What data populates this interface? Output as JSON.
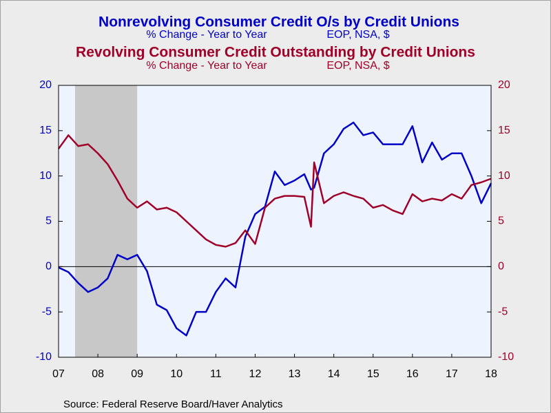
{
  "chart_data": {
    "type": "line",
    "source": "Source:  Federal Reserve Board/Haver Analytics",
    "recession": [
      2007.92,
      2009.5
    ],
    "recession_color": "#c8c8c8",
    "xlim": [
      2007.5,
      2018.5
    ],
    "xticks": [
      {
        "value": 2007.5,
        "label": "07"
      },
      {
        "value": 2008.5,
        "label": "08"
      },
      {
        "value": 2009.5,
        "label": "09"
      },
      {
        "value": 2010.5,
        "label": "10"
      },
      {
        "value": 2011.5,
        "label": "11"
      },
      {
        "value": 2012.5,
        "label": "12"
      },
      {
        "value": 2013.5,
        "label": "13"
      },
      {
        "value": 2014.5,
        "label": "14"
      },
      {
        "value": 2015.5,
        "label": "15"
      },
      {
        "value": 2016.5,
        "label": "16"
      },
      {
        "value": 2017.5,
        "label": "17"
      },
      {
        "value": 2018.5,
        "label": "18"
      }
    ],
    "ylim": [
      -10,
      20
    ],
    "yticks": [
      -10,
      -5,
      0,
      5,
      10,
      15,
      20
    ],
    "y2lim": [
      -10,
      20
    ],
    "y2ticks": [
      -10,
      -5,
      0,
      5,
      10,
      15,
      20
    ],
    "x": [
      2007.5,
      2007.75,
      2008,
      2008.25,
      2008.5,
      2008.75,
      2009,
      2009.25,
      2009.5,
      2009.75,
      2010,
      2010.25,
      2010.5,
      2010.75,
      2011,
      2011.25,
      2011.5,
      2011.75,
      2012,
      2012.25,
      2012.5,
      2012.75,
      2013,
      2013.25,
      2013.5,
      2013.75,
      2013.92,
      2014,
      2014.25,
      2014.5,
      2014.75,
      2015,
      2015.25,
      2015.5,
      2015.75,
      2016,
      2016.25,
      2016.5,
      2016.75,
      2017,
      2017.25,
      2017.5,
      2017.75,
      2018,
      2018.25,
      2018.5
    ],
    "series": [
      {
        "name": "Nonrevolving Consumer Credit O/s by Credit Unions",
        "unit": "% Change - Year to Year",
        "basis": "EOP, NSA, $",
        "color": "#0000c8",
        "axis": "y",
        "values": [
          -0.1,
          -0.6,
          -1.8,
          -2.8,
          -2.3,
          -1.3,
          1.3,
          0.8,
          1.3,
          -0.5,
          -4.2,
          -4.8,
          -6.8,
          -7.6,
          -5.0,
          -5.0,
          -2.8,
          -1.3,
          -2.3,
          3.3,
          5.8,
          6.6,
          10.5,
          9.0,
          9.5,
          10.2,
          8.5,
          8.7,
          12.5,
          13.5,
          15.2,
          15.9,
          14.5,
          14.8,
          13.5,
          13.5,
          13.5,
          15.5,
          11.5,
          13.7,
          11.8,
          12.5,
          12.5,
          10.0,
          7.0,
          9.2
        ]
      },
      {
        "name": "Revolving Consumer Credit Outstanding by Credit Unions",
        "unit": "% Change - Year to Year",
        "basis": "EOP, NSA, $",
        "color": "#a00028",
        "axis": "y2",
        "values": [
          13.0,
          14.5,
          13.3,
          13.5,
          12.5,
          11.3,
          9.5,
          7.5,
          6.5,
          7.2,
          6.3,
          6.5,
          6.0,
          5.0,
          4.0,
          3.0,
          2.4,
          2.2,
          2.6,
          4.0,
          2.5,
          6.5,
          7.5,
          7.8,
          7.8,
          7.7,
          4.4,
          11.5,
          7.0,
          7.8,
          8.2,
          7.8,
          7.5,
          6.5,
          6.8,
          6.2,
          5.8,
          8.0,
          7.2,
          7.5,
          7.3,
          8.0,
          7.5,
          9.0,
          9.3,
          9.7
        ]
      }
    ]
  }
}
